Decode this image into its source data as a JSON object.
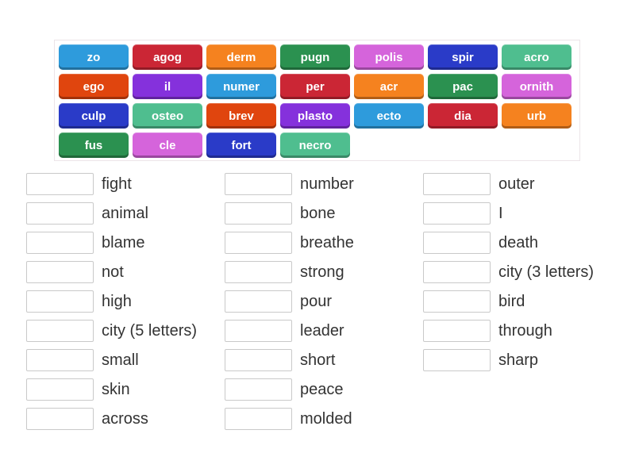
{
  "activity": {
    "type_label": "match-up"
  },
  "palette": {
    "blue": "#2E9BDC",
    "crimson": "#CB2635",
    "orange": "#F5821F",
    "green": "#2B9150",
    "orchid": "#D564DB",
    "royal_blue": "#2A3BC8",
    "sea_green": "#4FBE8F",
    "orange_red": "#E0450E",
    "purple": "#8531DC"
  },
  "tile_rows": [
    [
      {
        "label": "zo",
        "color": "blue"
      },
      {
        "label": "agog",
        "color": "crimson"
      },
      {
        "label": "derm",
        "color": "orange"
      },
      {
        "label": "pugn",
        "color": "green"
      },
      {
        "label": "polis",
        "color": "orchid"
      },
      {
        "label": "spir",
        "color": "royal_blue"
      },
      {
        "label": "acro",
        "color": "sea_green"
      }
    ],
    [
      {
        "label": "ego",
        "color": "orange_red"
      },
      {
        "label": "il",
        "color": "purple"
      },
      {
        "label": "numer",
        "color": "blue"
      },
      {
        "label": "per",
        "color": "crimson"
      },
      {
        "label": "acr",
        "color": "orange"
      },
      {
        "label": "pac",
        "color": "green"
      },
      {
        "label": "ornith",
        "color": "orchid"
      }
    ],
    [
      {
        "label": "culp",
        "color": "royal_blue"
      },
      {
        "label": "osteo",
        "color": "sea_green"
      },
      {
        "label": "brev",
        "color": "orange_red"
      },
      {
        "label": "plasto",
        "color": "purple"
      },
      {
        "label": "ecto",
        "color": "blue"
      },
      {
        "label": "dia",
        "color": "crimson"
      },
      {
        "label": "urb",
        "color": "orange"
      }
    ],
    [
      {
        "label": "fus",
        "color": "green"
      },
      {
        "label": "cle",
        "color": "orchid"
      },
      {
        "label": "fort",
        "color": "royal_blue"
      },
      {
        "label": "necro",
        "color": "sea_green"
      }
    ]
  ],
  "definition_columns": [
    {
      "items": [
        "fight",
        "animal",
        "blame",
        "not",
        "high",
        "city (5 letters)",
        "small",
        "skin",
        "across"
      ]
    },
    {
      "items": [
        "number",
        "bone",
        "breathe",
        "strong",
        "pour",
        "leader",
        "short",
        "peace",
        "molded"
      ]
    },
    {
      "items": [
        "outer",
        "I",
        "death",
        "city (3 letters)",
        "bird",
        "through",
        "sharp"
      ]
    }
  ]
}
